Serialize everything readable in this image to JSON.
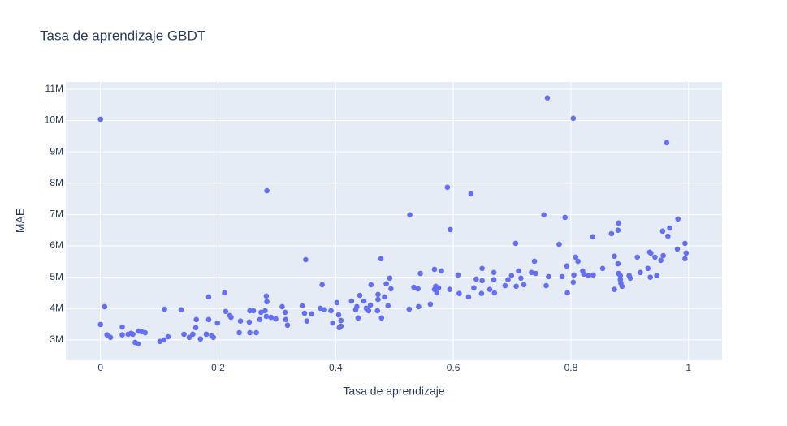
{
  "chart_data": {
    "type": "scatter",
    "title": "Tasa de aprendizaje GBDT",
    "x_label": "Tasa de aprendizaje",
    "y_label": "MAE",
    "color": "#636efa",
    "grid": true,
    "xlim": [
      -0.059,
      1.057
    ],
    "ylim": [
      2350000,
      11230000
    ],
    "xticks": [
      0,
      0.2,
      0.4,
      0.6,
      0.8,
      1
    ],
    "yticks": [
      {
        "value": 3000000,
        "label": "3M"
      },
      {
        "value": 4000000,
        "label": "4M"
      },
      {
        "value": 5000000,
        "label": "5M"
      },
      {
        "value": 6000000,
        "label": "6M"
      },
      {
        "value": 7000000,
        "label": "7M"
      },
      {
        "value": 8000000,
        "label": "8M"
      },
      {
        "value": 9000000,
        "label": "9M"
      },
      {
        "value": 10000000,
        "label": "10M"
      },
      {
        "value": 11000000,
        "label": "11M"
      }
    ],
    "x": [
      0,
      0,
      0.007,
      0.011,
      0.017,
      0.037,
      0.037,
      0.047,
      0.052,
      0.055,
      0.059,
      0.064,
      0.065,
      0.07,
      0.076,
      0.101,
      0.108,
      0.115,
      0.109,
      0.137,
      0.142,
      0.151,
      0.157,
      0.163,
      0.162,
      0.17,
      0.18,
      0.184,
      0.189,
      0.184,
      0.192,
      0.199,
      0.213,
      0.22,
      0.222,
      0.211,
      0.238,
      0.236,
      0.253,
      0.254,
      0.26,
      0.254,
      0.265,
      0.273,
      0.271,
      0.283,
      0.282,
      0.282,
      0.28,
      0.29,
      0.283,
      0.298,
      0.309,
      0.314,
      0.318,
      0.315,
      0.343,
      0.347,
      0.349,
      0.351,
      0.359,
      0.374,
      0.381,
      0.377,
      0.392,
      0.395,
      0.402,
      0.405,
      0.406,
      0.409,
      0.409,
      0.427,
      0.434,
      0.436,
      0.441,
      0.438,
      0.448,
      0.452,
      0.456,
      0.459,
      0.46,
      0.471,
      0.472,
      0.472,
      0.477,
      0.478,
      0.483,
      0.486,
      0.489,
      0.492,
      0.494,
      0.525,
      0.526,
      0.533,
      0.541,
      0.54,
      0.544,
      0.561,
      0.568,
      0.568,
      0.57,
      0.572,
      0.575,
      0.58,
      0.59,
      0.594,
      0.595,
      0.608,
      0.61,
      0.626,
      0.63,
      0.635,
      0.639,
      0.648,
      0.649,
      0.649,
      0.662,
      0.669,
      0.669,
      0.67,
      0.688,
      0.693,
      0.699,
      0.706,
      0.707,
      0.711,
      0.715,
      0.72,
      0.733,
      0.738,
      0.74,
      0.754,
      0.758,
      0.76,
      0.762,
      0.78,
      0.785,
      0.79,
      0.793,
      0.794,
      0.804,
      0.804,
      0.805,
      0.808,
      0.812,
      0.82,
      0.822,
      0.83,
      0.837,
      0.838,
      0.854,
      0.869,
      0.874,
      0.874,
      0.88,
      0.881,
      0.88,
      0.881,
      0.884,
      0.884,
      0.885,
      0.887,
      0.899,
      0.901,
      0.913,
      0.918,
      0.931,
      0.934,
      0.936,
      0.935,
      0.943,
      0.946,
      0.953,
      0.956,
      0.957,
      0.963,
      0.965,
      0.968,
      0.981,
      0.982,
      0.994,
      0.996,
      0.994
    ],
    "values": [
      10040000,
      3490000,
      4060000,
      3160000,
      3080000,
      3410000,
      3160000,
      3180000,
      3210000,
      3180000,
      2920000,
      2870000,
      3280000,
      3260000,
      3230000,
      2950000,
      3000000,
      3100000,
      3980000,
      3960000,
      3180000,
      3080000,
      3180000,
      3650000,
      3390000,
      3030000,
      3180000,
      3650000,
      3130000,
      4370000,
      3080000,
      3540000,
      3910000,
      3780000,
      3720000,
      4500000,
      3600000,
      3230000,
      3570000,
      3930000,
      3930000,
      3230000,
      3230000,
      3880000,
      3650000,
      4220000,
      4400000,
      3750000,
      3930000,
      3720000,
      7760000,
      3670000,
      4060000,
      3880000,
      3470000,
      3650000,
      4090000,
      3850000,
      5560000,
      3600000,
      3830000,
      4010000,
      3960000,
      4760000,
      3930000,
      3540000,
      4190000,
      3800000,
      3390000,
      3620000,
      3440000,
      4240000,
      3960000,
      4060000,
      4420000,
      3700000,
      4240000,
      4010000,
      3930000,
      4110000,
      4760000,
      3930000,
      4450000,
      4290000,
      5590000,
      3700000,
      4370000,
      4790000,
      4090000,
      4970000,
      4630000,
      3980000,
      6990000,
      4680000,
      4060000,
      4630000,
      5120000,
      4140000,
      5250000,
      4610000,
      4710000,
      4500000,
      4660000,
      5200000,
      7870000,
      4610000,
      6520000,
      5070000,
      4480000,
      4370000,
      7660000,
      4660000,
      4940000,
      4480000,
      5280000,
      4890000,
      4610000,
      4920000,
      5150000,
      4500000,
      4730000,
      4920000,
      5050000,
      6080000,
      4710000,
      5200000,
      4970000,
      4760000,
      5150000,
      5510000,
      5120000,
      6990000,
      4730000,
      10720000,
      5020000,
      6050000,
      5020000,
      6910000,
      5360000,
      4500000,
      10070000,
      4840000,
      5070000,
      5640000,
      5510000,
      5200000,
      5100000,
      5050000,
      6290000,
      5070000,
      5280000,
      6390000,
      4610000,
      5670000,
      6500000,
      6730000,
      5430000,
      5120000,
      5050000,
      4920000,
      4810000,
      4710000,
      5050000,
      4970000,
      5640000,
      5150000,
      5280000,
      5800000,
      5770000,
      5000000,
      5640000,
      5050000,
      5540000,
      6470000,
      5690000,
      9290000,
      6310000,
      6570000,
      5900000,
      6860000,
      6080000,
      5770000,
      5590000
    ]
  }
}
